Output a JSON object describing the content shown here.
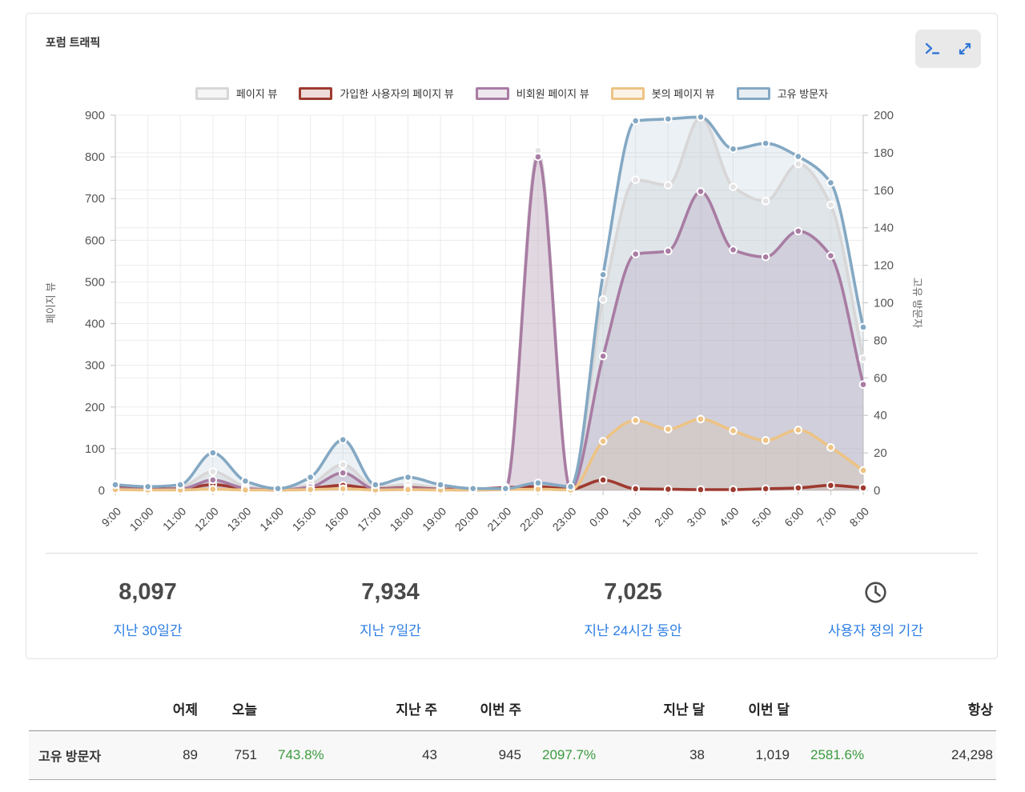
{
  "header": {
    "title": "포럼 트래픽"
  },
  "toolbar": {
    "buttons": [
      {
        "icon": "terminal-icon"
      },
      {
        "icon": "expand-icon"
      }
    ],
    "icon_color": "#3478d8",
    "background": "#e9e9e9"
  },
  "chart_data": {
    "type": "line",
    "x": [
      "9:00",
      "10:00",
      "11:00",
      "12:00",
      "13:00",
      "14:00",
      "15:00",
      "16:00",
      "17:00",
      "18:00",
      "19:00",
      "20:00",
      "21:00",
      "22:00",
      "23:00",
      "0:00",
      "1:00",
      "2:00",
      "3:00",
      "4:00",
      "5:00",
      "6:00",
      "7:00",
      "8:00"
    ],
    "left_axis": {
      "label": "페이지 뷰",
      "min": 0,
      "max": 900,
      "step": 100
    },
    "right_axis": {
      "label": "고유 방문자",
      "min": 0,
      "max": 200,
      "step": 20
    },
    "grid": true,
    "legend_position": "top",
    "series": [
      {
        "name": "페이지 뷰",
        "axis": "left",
        "color": "#d8d6d7",
        "dot": "#e3e1e2",
        "fill": "rgba(216,214,215,0.35)",
        "legend_fill": "rgba(216,214,215,0.25)",
        "values": [
          15,
          5,
          8,
          45,
          10,
          2,
          15,
          62,
          8,
          14,
          6,
          3,
          8,
          815,
          5,
          458,
          745,
          732,
          895,
          728,
          694,
          783,
          685,
          316
        ]
      },
      {
        "name": "가입한 사용자의 페이지 뷰",
        "axis": "left",
        "color": "#9e3a30",
        "dot": "#9e3a30",
        "fill": "rgba(158,58,48,0.10)",
        "legend_fill": "rgba(158,58,48,0.18)",
        "values": [
          7,
          3,
          4,
          14,
          4,
          1,
          5,
          12,
          4,
          7,
          3,
          3,
          7,
          9,
          3,
          25,
          4,
          3,
          2,
          2,
          4,
          6,
          12,
          6
        ]
      },
      {
        "name": "비회원 페이지 뷰",
        "axis": "left",
        "color": "#a87ca3",
        "dot": "#a87ca3",
        "fill": "rgba(168,124,163,0.22)",
        "legend_fill": "rgba(168,124,163,0.18)",
        "values": [
          5,
          2,
          3,
          25,
          5,
          1,
          8,
          42,
          3,
          5,
          2,
          1,
          2,
          800,
          3,
          322,
          567,
          574,
          717,
          577,
          560,
          622,
          563,
          254
        ]
      },
      {
        "name": "봇의 페이지 뷰",
        "axis": "left",
        "color": "#edc384",
        "dot": "#edc384",
        "fill": "rgba(237,195,132,0.22)",
        "legend_fill": "rgba(237,195,132,0.2)",
        "values": [
          2,
          1,
          1,
          3,
          1,
          1,
          2,
          4,
          1,
          2,
          1,
          1,
          2,
          3,
          1,
          118,
          168,
          147,
          171,
          143,
          120,
          145,
          103,
          48
        ]
      },
      {
        "name": "고유 방문자",
        "axis": "right",
        "color": "#84a8c3",
        "dot": "#84a8c3",
        "fill": "rgba(132,168,195,0.16)",
        "legend_fill": "rgba(132,168,195,0.2)",
        "values": [
          3,
          2,
          3,
          20,
          5,
          1,
          7,
          27,
          3,
          7,
          3,
          1,
          1,
          4,
          2,
          115,
          197,
          198,
          199,
          182,
          185,
          178,
          164,
          87
        ]
      }
    ]
  },
  "stats": [
    {
      "value": "8,097",
      "label": "지난 30일간"
    },
    {
      "value": "7,934",
      "label": "지난 7일간"
    },
    {
      "value": "7,025",
      "label": "지난 24시간 동안"
    },
    {
      "icon": "clock-icon",
      "label": "사용자 정의 기간"
    }
  ],
  "stats_colors": {
    "value": "#4a4a4a",
    "link": "#2b7de3"
  },
  "table": {
    "row_label": "고유 방문자",
    "headers": [
      "어제",
      "오늘",
      "",
      "지난 주",
      "이번 주",
      "",
      "지난 달",
      "이번 달",
      "",
      "항상"
    ],
    "values": [
      "89",
      "751",
      "743.8%",
      "43",
      "945",
      "2097.7%",
      "38",
      "1,019",
      "2581.6%",
      "24,298"
    ],
    "percent_indices": [
      2,
      5,
      8
    ],
    "percent_color": "#3b9a3e"
  }
}
